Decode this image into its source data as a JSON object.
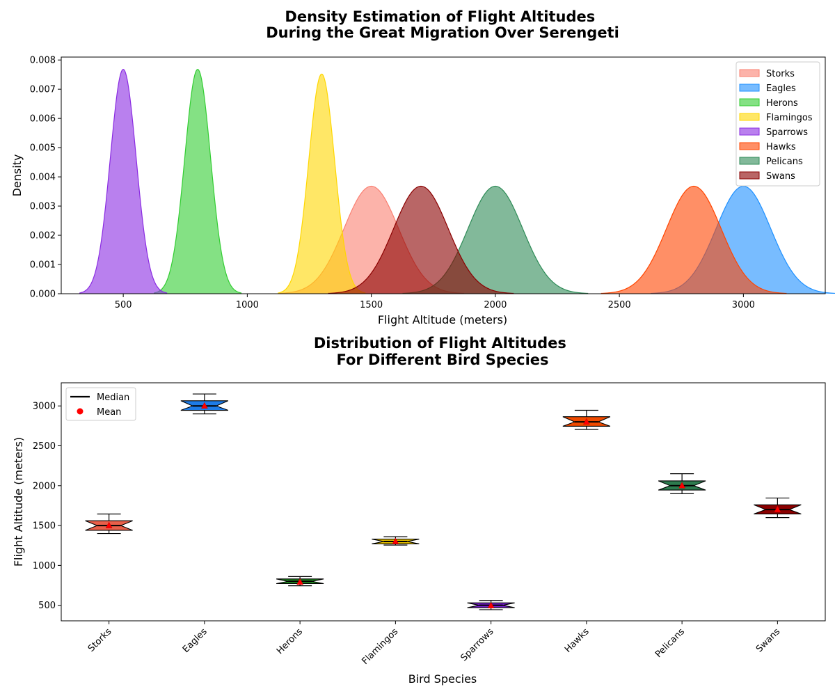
{
  "chart_data": [
    {
      "type": "area",
      "title": "Density Estimation of Flight Altitudes\nDuring the Great Migration Over Serengeti",
      "xlabel": "Flight Altitude (meters)",
      "ylabel": "Density",
      "xlim": [
        250,
        3330
      ],
      "ylim": [
        0,
        0.0081
      ],
      "xticks": [
        500,
        1000,
        1500,
        2000,
        2500,
        3000
      ],
      "yticks": [
        0,
        0.001,
        0.002,
        0.003,
        0.004,
        0.005,
        0.006,
        0.007,
        0.008
      ],
      "ytick_labels": [
        "0.000",
        "0.001",
        "0.002",
        "0.003",
        "0.004",
        "0.005",
        "0.006",
        "0.007",
        "0.008"
      ],
      "legend_position": "top-right",
      "series": [
        {
          "name": "Storks",
          "mean": 1500,
          "sd": 110,
          "peak": 0.00368,
          "color": "#FA8072"
        },
        {
          "name": "Eagles",
          "mean": 3000,
          "sd": 110,
          "peak": 0.00368,
          "color": "#1E90FF"
        },
        {
          "name": "Herons",
          "mean": 800,
          "sd": 52,
          "peak": 0.00768,
          "color": "#32CD32"
        },
        {
          "name": "Flamingos",
          "mean": 1300,
          "sd": 52,
          "peak": 0.00752,
          "color": "#FFD700"
        },
        {
          "name": "Sparrows",
          "mean": 500,
          "sd": 52,
          "peak": 0.00768,
          "color": "#8A2BE2"
        },
        {
          "name": "Hawks",
          "mean": 2800,
          "sd": 110,
          "peak": 0.00368,
          "color": "#FF4500"
        },
        {
          "name": "Pelicans",
          "mean": 2000,
          "sd": 110,
          "peak": 0.00368,
          "color": "#2E8B57"
        },
        {
          "name": "Swans",
          "mean": 1700,
          "sd": 110,
          "peak": 0.00368,
          "color": "#8B0000"
        }
      ]
    },
    {
      "type": "box",
      "title": "Distribution of Flight Altitudes\nFor Different Bird Species",
      "xlabel": "Bird Species",
      "ylabel": "Flight Altitude (meters)",
      "ylim": [
        305,
        3290
      ],
      "yticks": [
        500,
        1000,
        1500,
        2000,
        2500,
        3000
      ],
      "legend_position": "top-left",
      "legend": [
        "Median",
        "Mean"
      ],
      "categories": [
        "Storks",
        "Eagles",
        "Herons",
        "Flamingos",
        "Sparrows",
        "Hawks",
        "Pelicans",
        "Swans"
      ],
      "boxes": [
        {
          "name": "Storks",
          "whisker_low": 1400,
          "q1": 1440,
          "median": 1500,
          "q3": 1560,
          "whisker_high": 1645,
          "mean": 1500,
          "color": "#E9604A"
        },
        {
          "name": "Eagles",
          "whisker_low": 2900,
          "q1": 2945,
          "median": 3000,
          "q3": 3065,
          "whisker_high": 3150,
          "mean": 3000,
          "color": "#1E7CE8"
        },
        {
          "name": "Herons",
          "whisker_low": 745,
          "q1": 772,
          "median": 800,
          "q3": 830,
          "whisker_high": 860,
          "mean": 790,
          "color": "#228B22"
        },
        {
          "name": "Flamingos",
          "whisker_low": 1255,
          "q1": 1270,
          "median": 1300,
          "q3": 1330,
          "whisker_high": 1360,
          "mean": 1300,
          "color": "#E6C000"
        },
        {
          "name": "Sparrows",
          "whisker_low": 445,
          "q1": 470,
          "median": 500,
          "q3": 530,
          "whisker_high": 560,
          "mean": 495,
          "color": "#7A1FD2"
        },
        {
          "name": "Hawks",
          "whisker_low": 2705,
          "q1": 2745,
          "median": 2800,
          "q3": 2865,
          "whisker_high": 2945,
          "mean": 2800,
          "color": "#EF4A00"
        },
        {
          "name": "Pelicans",
          "whisker_low": 1900,
          "q1": 1945,
          "median": 2000,
          "q3": 2060,
          "whisker_high": 2150,
          "mean": 2000,
          "color": "#2E7B4F"
        },
        {
          "name": "Swans",
          "whisker_low": 1600,
          "q1": 1645,
          "median": 1700,
          "q3": 1760,
          "whisker_high": 1845,
          "mean": 1700,
          "color": "#8B0000"
        }
      ]
    }
  ]
}
